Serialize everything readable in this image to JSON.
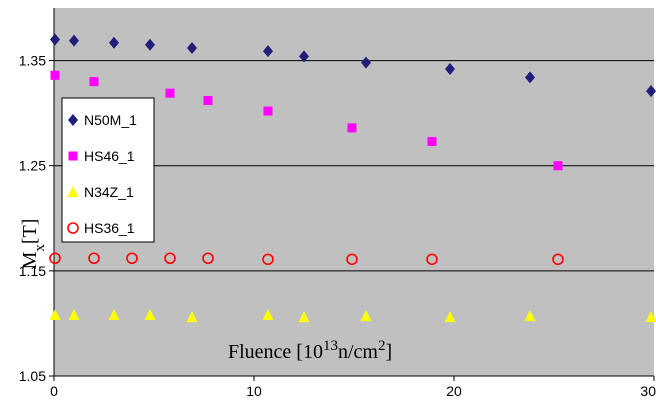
{
  "chart_data": {
    "type": "scatter",
    "xlabel": "Fluence [10",
    "xlabel_sup": "13",
    "xlabel_mid": "n/cm",
    "xlabel_sup2": "2",
    "xlabel_end": "]",
    "ylabel_main": "M",
    "ylabel_sub": "x",
    "ylabel_unit": "[T]",
    "xlim": [
      0,
      30
    ],
    "ylim": [
      1.05,
      1.4
    ],
    "x_ticks": [
      0,
      10,
      20,
      30
    ],
    "y_ticks": [
      1.05,
      1.15,
      1.25,
      1.35
    ],
    "x_tick_labels": [
      "0",
      "10",
      "20",
      "30"
    ],
    "y_tick_labels": [
      "1.05",
      "1.15",
      "1.25",
      "1.35"
    ],
    "plot_background": "#c0c0c0",
    "gridlines": "horizontal",
    "legend_position": "left",
    "series": [
      {
        "name": "N50M_1",
        "marker": "diamond",
        "color": "#1f1f7a",
        "x": [
          0,
          1,
          3,
          4.8,
          6.9,
          10.7,
          12.5,
          15.6,
          19.8,
          23.8,
          30
        ],
        "y": [
          1.37,
          1.369,
          1.367,
          1.365,
          1.362,
          1.359,
          1.354,
          1.348,
          1.342,
          1.334,
          1.321
        ]
      },
      {
        "name": "HS46_1",
        "marker": "square",
        "color": "#ff00ff",
        "x": [
          0,
          2,
          5.8,
          7.7,
          10.7,
          14.9,
          18.9,
          25.2
        ],
        "y": [
          1.336,
          1.33,
          1.319,
          1.312,
          1.302,
          1.286,
          1.273,
          1.25
        ]
      },
      {
        "name": "N34Z_1",
        "marker": "triangle",
        "color": "#ffff00",
        "x": [
          0,
          1,
          3,
          4.8,
          6.9,
          10.7,
          12.5,
          15.6,
          19.8,
          23.8,
          30
        ],
        "y": [
          1.108,
          1.108,
          1.108,
          1.108,
          1.106,
          1.108,
          1.106,
          1.107,
          1.106,
          1.107,
          1.106
        ]
      },
      {
        "name": "HS36_1",
        "marker": "circle-open",
        "color": "#ff0000",
        "x": [
          0,
          2,
          3.9,
          5.8,
          7.7,
          10.7,
          14.9,
          18.9,
          25.2
        ],
        "y": [
          1.162,
          1.162,
          1.162,
          1.162,
          1.162,
          1.161,
          1.161,
          1.161,
          1.161
        ]
      }
    ]
  }
}
